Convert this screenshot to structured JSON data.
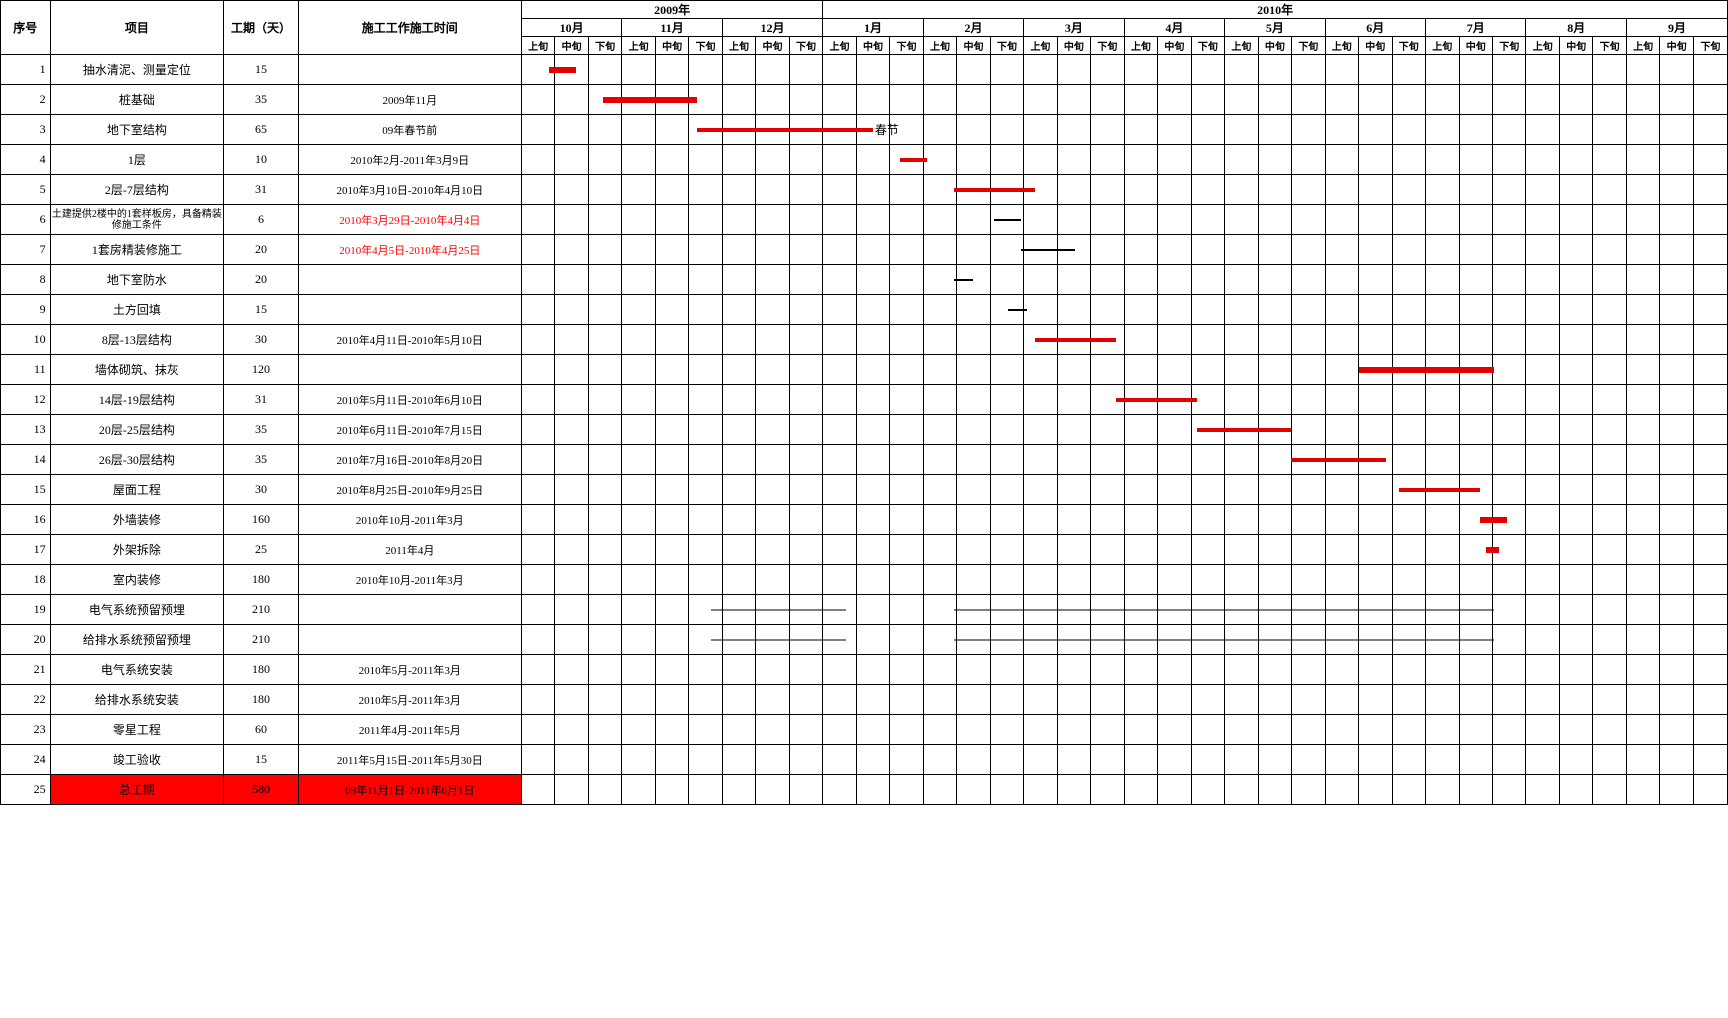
{
  "header": {
    "seq": "序号",
    "project": "项目",
    "duration": "工期（天）",
    "workTime": "施工工作施工时间",
    "year2009": "2009年",
    "year2010": "2010年",
    "months2009": [
      "10月",
      "11月",
      "12月"
    ],
    "months2010": [
      "1月",
      "2月",
      "3月",
      "4月",
      "5月",
      "6月",
      "7月",
      "8月",
      "9月"
    ],
    "subs": [
      "上旬",
      "中旬",
      "下旬"
    ]
  },
  "annotation": {
    "springFestival": "春节"
  },
  "colors": {
    "barRed": "#e30000",
    "barBlack": "#000000",
    "totalBg": "#ff0000",
    "border": "#000000"
  },
  "rows": [
    {
      "seq": "1",
      "project": "抽水清泥、测量定位",
      "duration": "15",
      "time": "",
      "bars": [
        {
          "start": 1,
          "span": 1,
          "color": "#e30000",
          "thick": 6
        }
      ]
    },
    {
      "seq": "2",
      "project": "桩基础",
      "duration": "35",
      "time": "2009年11月",
      "bars": [
        {
          "start": 3,
          "span": 3.5,
          "color": "#e30000",
          "thick": 6
        }
      ]
    },
    {
      "seq": "3",
      "project": "地下室结构",
      "duration": "65",
      "time": "09年春节前",
      "bars": [
        {
          "start": 6.5,
          "span": 6.5,
          "color": "#e30000",
          "thick": 4
        }
      ],
      "annot": "springFestival",
      "annotCol": 13
    },
    {
      "seq": "4",
      "project": "1层",
      "duration": "10",
      "time": "2010年2月-2011年3月9日",
      "bars": [
        {
          "start": 14,
          "span": 1,
          "color": "#e30000",
          "thick": 4
        }
      ]
    },
    {
      "seq": "5",
      "project": "2层-7层结构",
      "duration": "31",
      "time": "2010年3月10日-2010年4月10日",
      "bars": [
        {
          "start": 16,
          "span": 3,
          "color": "#e30000",
          "thick": 4
        }
      ]
    },
    {
      "seq": "6",
      "project": "土建提供2楼中的1套样板房，具备精装修施工条件",
      "smallProject": true,
      "duration": "6",
      "time": "2010年3月29日-2010年4月4日",
      "redTime": true,
      "bars": [
        {
          "start": 17.5,
          "span": 1,
          "color": "#000000",
          "thick": 2
        }
      ]
    },
    {
      "seq": "7",
      "project": "1套房精装修施工",
      "duration": "20",
      "time": "2010年4月5日-2010年4月25日",
      "redTime": true,
      "bars": [
        {
          "start": 18.5,
          "span": 2,
          "color": "#000000",
          "thick": 2
        }
      ]
    },
    {
      "seq": "8",
      "project": "地下室防水",
      "duration": "20",
      "time": "",
      "bars": [
        {
          "start": 16,
          "span": 0.7,
          "color": "#000000",
          "thick": 2
        }
      ]
    },
    {
      "seq": "9",
      "project": "土方回填",
      "duration": "15",
      "time": "",
      "bars": [
        {
          "start": 18,
          "span": 0.7,
          "color": "#000000",
          "thick": 2
        }
      ]
    },
    {
      "seq": "10",
      "project": "8层-13层结构",
      "duration": "30",
      "time": "2010年4月11日-2010年5月10日",
      "bars": [
        {
          "start": 19,
          "span": 3,
          "color": "#e30000",
          "thick": 4
        }
      ]
    },
    {
      "seq": "11",
      "project": "墙体砌筑、抹灰",
      "duration": "120",
      "time": "",
      "bars": [
        {
          "start": 31,
          "span": 5,
          "color": "#e30000",
          "thick": 6
        }
      ]
    },
    {
      "seq": "12",
      "project": "14层-19层结构",
      "duration": "31",
      "time": "2010年5月11日-2010年6月10日",
      "bars": [
        {
          "start": 22,
          "span": 3,
          "color": "#e30000",
          "thick": 4
        }
      ]
    },
    {
      "seq": "13",
      "project": "20层-25层结构",
      "duration": "35",
      "time": "2010年6月11日-2010年7月15日",
      "bars": [
        {
          "start": 25,
          "span": 3.5,
          "color": "#e30000",
          "thick": 4
        }
      ]
    },
    {
      "seq": "14",
      "project": "26层-30层结构",
      "duration": "35",
      "time": "2010年7月16日-2010年8月20日",
      "bars": [
        {
          "start": 28.5,
          "span": 3.5,
          "color": "#e30000",
          "thick": 4
        }
      ]
    },
    {
      "seq": "15",
      "project": "屋面工程",
      "duration": "30",
      "time": "2010年8月25日-2010年9月25日",
      "bars": [
        {
          "start": 32.5,
          "span": 3,
          "color": "#e30000",
          "thick": 4
        }
      ]
    },
    {
      "seq": "16",
      "project": "外墙装修",
      "duration": "160",
      "time": "2010年10月-2011年3月",
      "bars": [
        {
          "start": 35.5,
          "span": 1,
          "color": "#e30000",
          "thick": 6
        }
      ]
    },
    {
      "seq": "17",
      "project": "外架拆除",
      "duration": "25",
      "time": "2011年4月",
      "bars": [
        {
          "start": 35.7,
          "span": 0.5,
          "color": "#e30000",
          "thick": 6
        }
      ]
    },
    {
      "seq": "18",
      "project": "室内装修",
      "duration": "180",
      "time": "2010年10月-2011年3月",
      "bars": []
    },
    {
      "seq": "19",
      "project": "电气系统预留预埋",
      "duration": "210",
      "time": "",
      "bars": [
        {
          "start": 7,
          "span": 5,
          "color": "#000000",
          "thick": 1
        },
        {
          "start": 16,
          "span": 20,
          "color": "#000000",
          "thick": 1
        }
      ]
    },
    {
      "seq": "20",
      "project": "给排水系统预留预埋",
      "duration": "210",
      "time": "",
      "bars": [
        {
          "start": 7,
          "span": 5,
          "color": "#000000",
          "thick": 1
        },
        {
          "start": 16,
          "span": 20,
          "color": "#000000",
          "thick": 1
        }
      ]
    },
    {
      "seq": "21",
      "project": "电气系统安装",
      "duration": "180",
      "time": "2010年5月-2011年3月",
      "bars": []
    },
    {
      "seq": "22",
      "project": "给排水系统安装",
      "duration": "180",
      "time": "2010年5月-2011年3月",
      "bars": []
    },
    {
      "seq": "23",
      "project": "零星工程",
      "duration": "60",
      "time": "2011年4月-2011年5月",
      "bars": []
    },
    {
      "seq": "24",
      "project": "竣工验收",
      "duration": "15",
      "time": "2011年5月15日-2011年5月30日",
      "bars": []
    },
    {
      "seq": "25",
      "project": "总工期",
      "duration": "580",
      "time": "09年11月1日-2011年6月1日",
      "total": true,
      "bars": []
    }
  ],
  "layout": {
    "subColWidth": 27,
    "totalSubCols": 36
  }
}
